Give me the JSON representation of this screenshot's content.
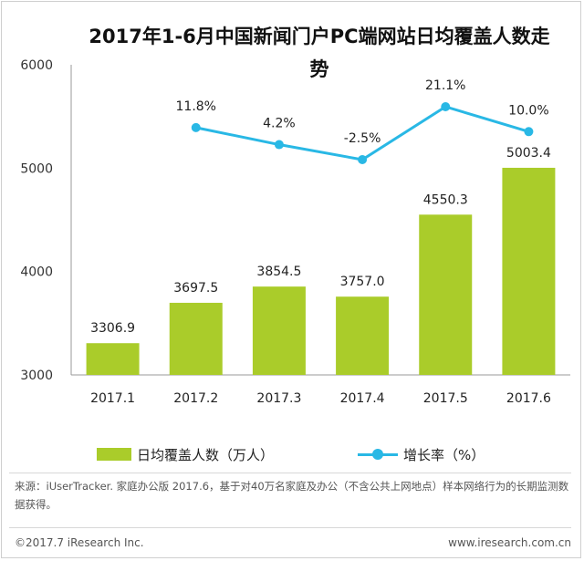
{
  "title": "2017年1-6月中国新闻门户PC端网站日均覆盖人数走势",
  "colors": {
    "bar": "#aacc2a",
    "line": "#29b8e5",
    "axis": "#999999"
  },
  "chart_data": {
    "type": "bar",
    "categories": [
      "2017.1",
      "2017.2",
      "2017.3",
      "2017.4",
      "2017.5",
      "2017.6"
    ],
    "series": [
      {
        "name": "日均覆盖人数（万人）",
        "type": "bar",
        "values": [
          3306.9,
          3697.5,
          3854.5,
          3757.0,
          4550.3,
          5003.4
        ],
        "labels": [
          "3306.9",
          "3697.5",
          "3854.5",
          "3757.0",
          "4550.3",
          "5003.4"
        ]
      },
      {
        "name": "增长率（%）",
        "type": "line",
        "values": [
          null,
          11.8,
          4.2,
          -2.5,
          21.1,
          10.0
        ],
        "labels": [
          "",
          "11.8%",
          "4.2%",
          "-2.5%",
          "21.1%",
          "10.0%"
        ]
      }
    ],
    "y_ticks": [
      "6000",
      "5000",
      "4000",
      "3000"
    ],
    "ylim": [
      3000,
      6000
    ],
    "legend_position": "bottom"
  },
  "source": "来源：iUserTracker. 家庭办公版 2017.6，基于对40万名家庭及办公（不含公共上网地点）样本网络行为的长期监测数据获得。",
  "footer": {
    "copyright": "©2017.7 iResearch Inc.",
    "website": "www.iresearch.com.cn"
  }
}
